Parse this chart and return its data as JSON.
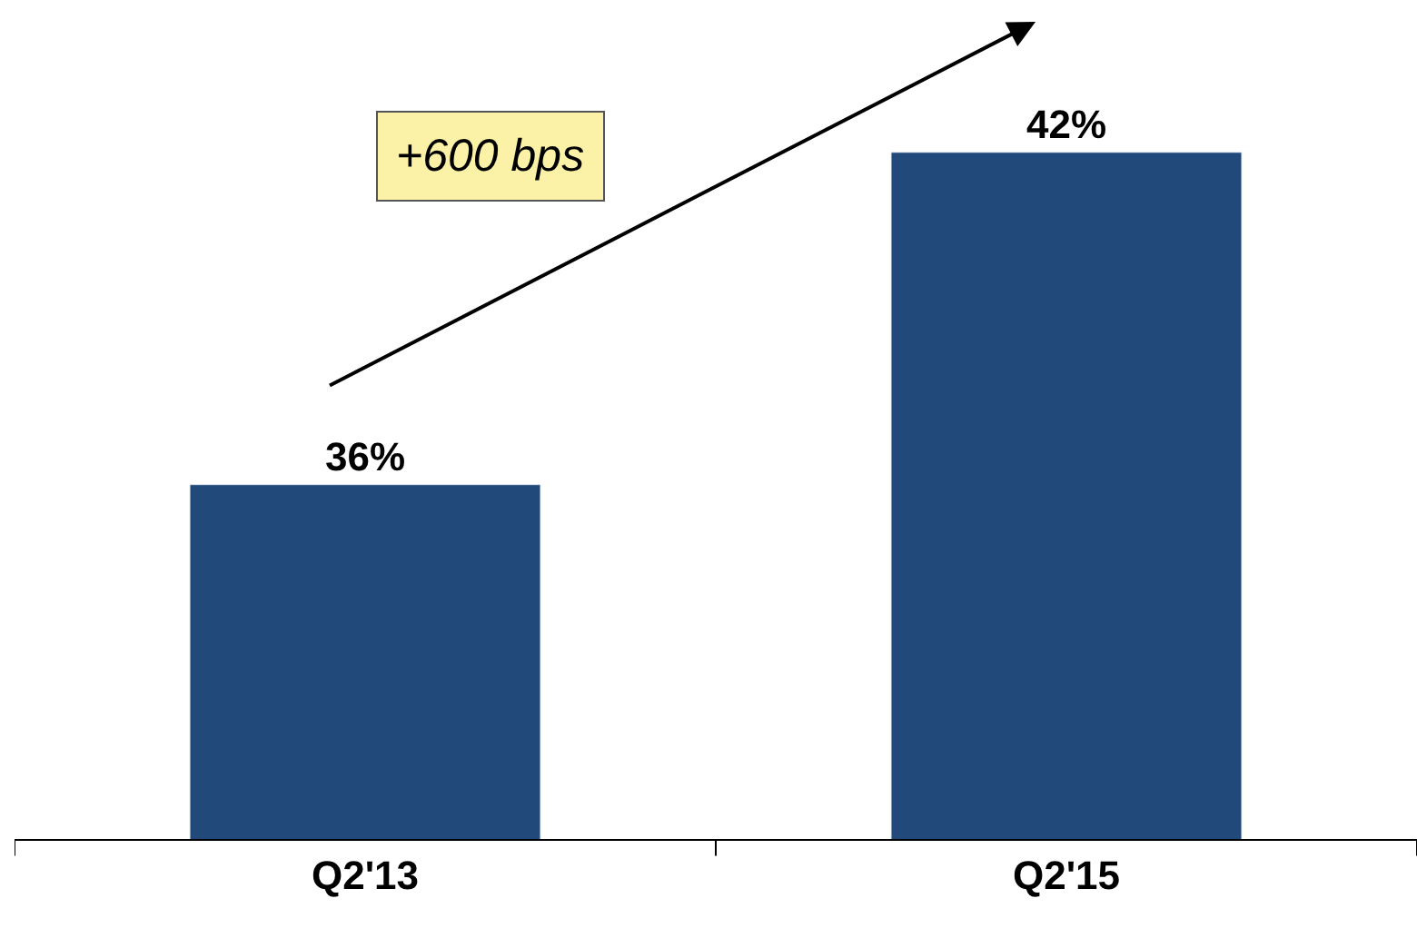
{
  "chart_data": {
    "type": "bar",
    "categories": [
      "Q2'13",
      "Q2'15"
    ],
    "values": [
      36,
      42
    ],
    "value_labels": [
      "36%",
      "42%"
    ],
    "color": "#214a7b",
    "ylim": [
      29.6,
      44.75
    ],
    "legend": false,
    "annotations": [
      "+600 bps"
    ]
  }
}
